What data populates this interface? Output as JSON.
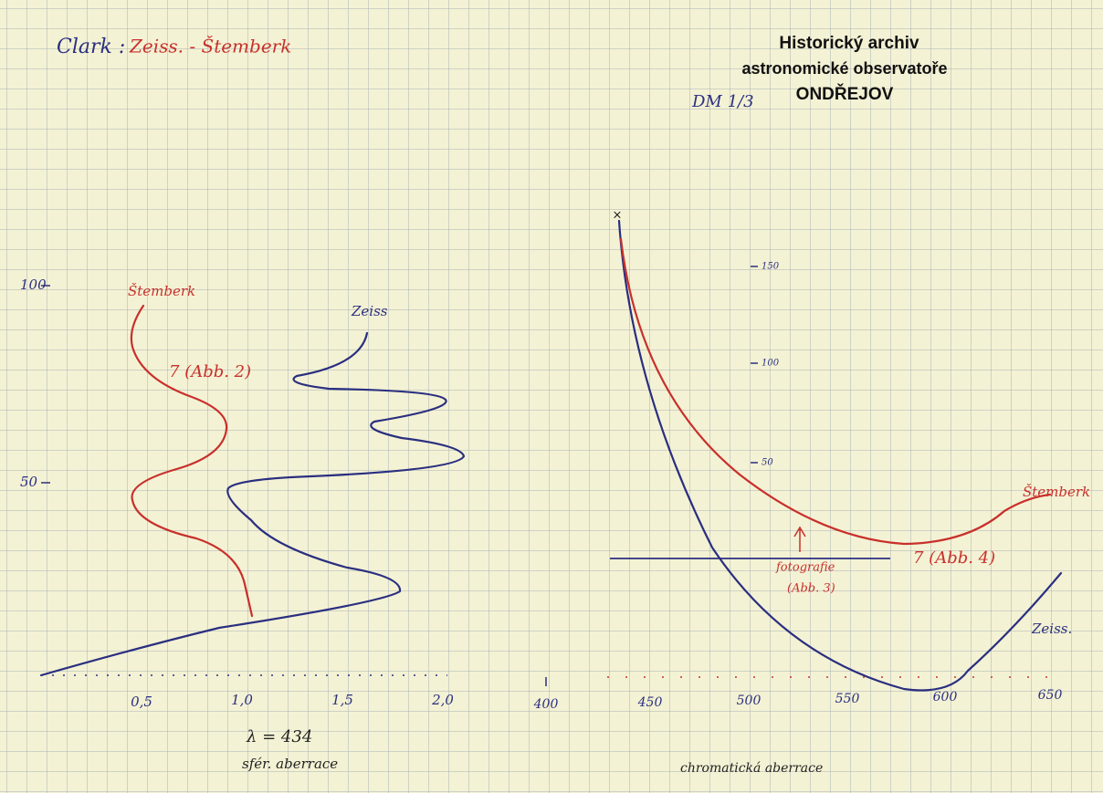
{
  "title": {
    "clark": "Clark :",
    "rest": "Zeiss. - Štemberk"
  },
  "stamp": {
    "line1": "Historický archiv",
    "line2": "astronomické observatoře",
    "line3": "ONDŘEJOV"
  },
  "reference": "DM 1/3",
  "left_graph": {
    "y_ticks": [
      "100",
      "50"
    ],
    "x_ticks": [
      "0,5",
      "1,0",
      "1,5",
      "2,0"
    ],
    "labels": {
      "stemberk": "Štemberk",
      "zeiss": "Zeiss",
      "note": "7 (Abb. 2)"
    },
    "wavelength": "λ = 434",
    "caption": "sfér. aberrace"
  },
  "right_graph": {
    "y_ticks": [
      "150",
      "100",
      "50"
    ],
    "x_ticks": [
      "400",
      "450",
      "500",
      "550",
      "600",
      "650"
    ],
    "labels": {
      "stemberk": "Štemberk",
      "zeiss": "Zeiss.",
      "note": "7 (Abb. 4)",
      "photo": "fotografie",
      "photo_ref": "(Abb. 3)"
    },
    "caption": "chromatická aberrace"
  }
}
